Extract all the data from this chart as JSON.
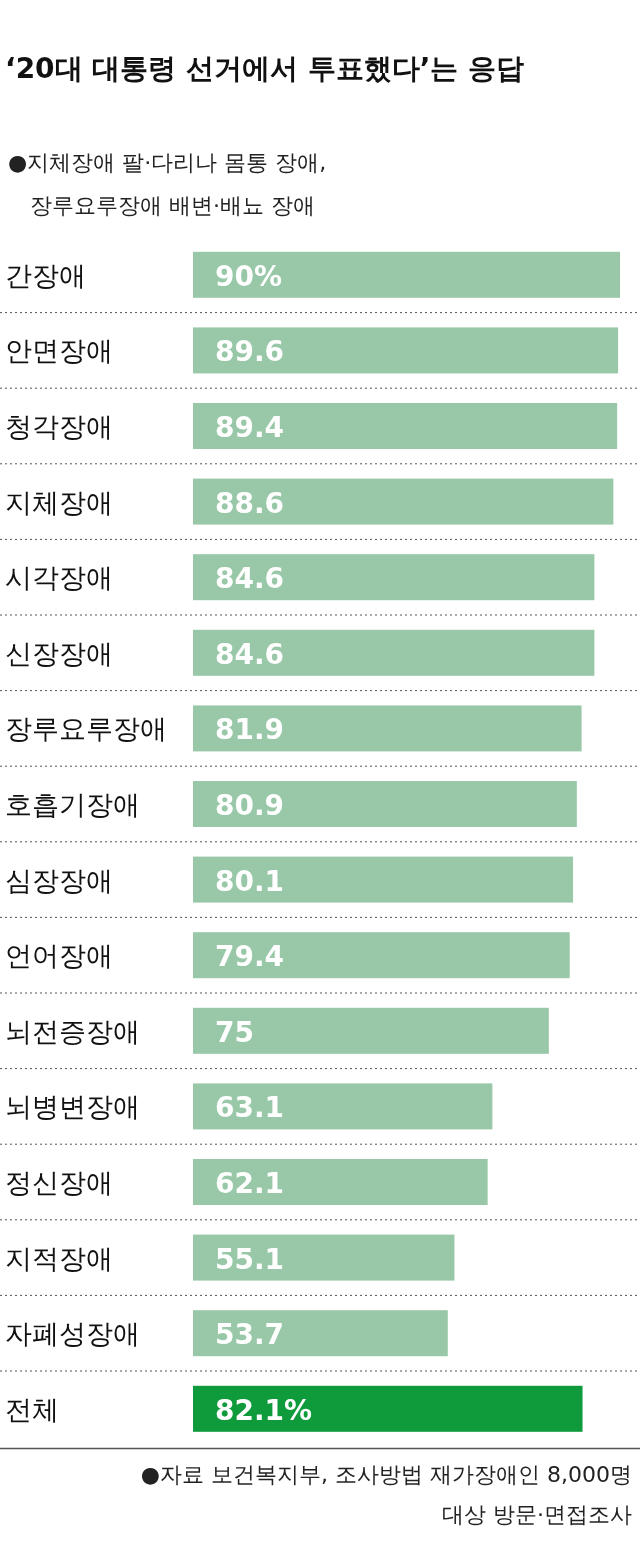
{
  "chart_data": {
    "type": "bar",
    "orientation": "horizontal",
    "title": "‘20대 대통령 선거에서 투표했다’는 응답",
    "annotations": [
      "●지체장애 팔·다리나 몸통 장애,",
      "장루요루장애 배변·배뇨 장애",
      "●자료 보건복지부, 조사방법 재가장애인 8,000명",
      "대상 방문·면접조사"
    ],
    "categories": [
      "간장애",
      "안면장애",
      "청각장애",
      "지체장애",
      "시각장애",
      "신장장애",
      "장루요루장애",
      "호흡기장애",
      "심장장애",
      "언어장애",
      "뇌전증장애",
      "뇌병변장애",
      "정신장애",
      "지적장애",
      "자폐성장애",
      "전체"
    ],
    "values": [
      90,
      89.6,
      89.4,
      88.6,
      84.6,
      84.6,
      81.9,
      80.9,
      80.1,
      79.4,
      75,
      63.1,
      62.1,
      55.1,
      53.7,
      82.1
    ],
    "value_labels": [
      "90%",
      "89.6",
      "89.4",
      "88.6",
      "84.6",
      "84.6",
      "81.9",
      "80.9",
      "80.1",
      "79.4",
      "75",
      "63.1",
      "62.1",
      "55.1",
      "53.7",
      "82.1%"
    ],
    "colors": [
      "#98c8a8",
      "#98c8a8",
      "#98c8a8",
      "#98c8a8",
      "#98c8a8",
      "#98c8a8",
      "#98c8a8",
      "#98c8a8",
      "#98c8a8",
      "#98c8a8",
      "#98c8a8",
      "#98c8a8",
      "#98c8a8",
      "#98c8a8",
      "#98c8a8",
      "#0f9a3c"
    ],
    "xlim": [
      0,
      90
    ]
  }
}
